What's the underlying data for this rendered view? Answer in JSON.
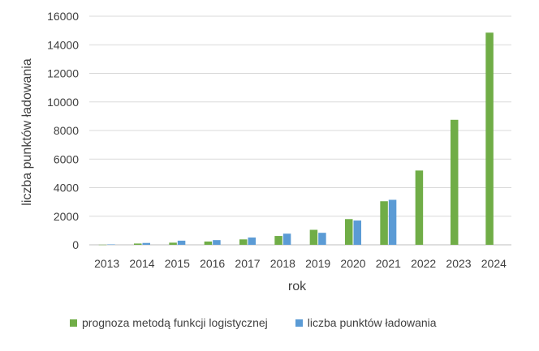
{
  "chart_data": {
    "type": "bar",
    "categories": [
      "2013",
      "2014",
      "2015",
      "2016",
      "2017",
      "2018",
      "2019",
      "2020",
      "2021",
      "2022",
      "2023",
      "2024"
    ],
    "series": [
      {
        "name": "prognoza metodą funkcji logistycznej",
        "color": "#70ad47",
        "values": [
          10,
          90,
          150,
          230,
          380,
          620,
          1050,
          1800,
          3050,
          5200,
          8750,
          14850
        ]
      },
      {
        "name": "liczba punktów ładowania",
        "color": "#5b9bd5",
        "values": [
          30,
          130,
          290,
          330,
          510,
          780,
          840,
          1700,
          3150,
          null,
          null,
          null
        ]
      }
    ],
    "xlabel": "rok",
    "ylabel": "liczba punktów ładowania",
    "ylim": [
      0,
      16000
    ],
    "yticks": [
      "0",
      "2000",
      "4000",
      "6000",
      "8000",
      "10000",
      "12000",
      "14000",
      "16000"
    ],
    "grid": true,
    "legend_position": "bottom"
  }
}
